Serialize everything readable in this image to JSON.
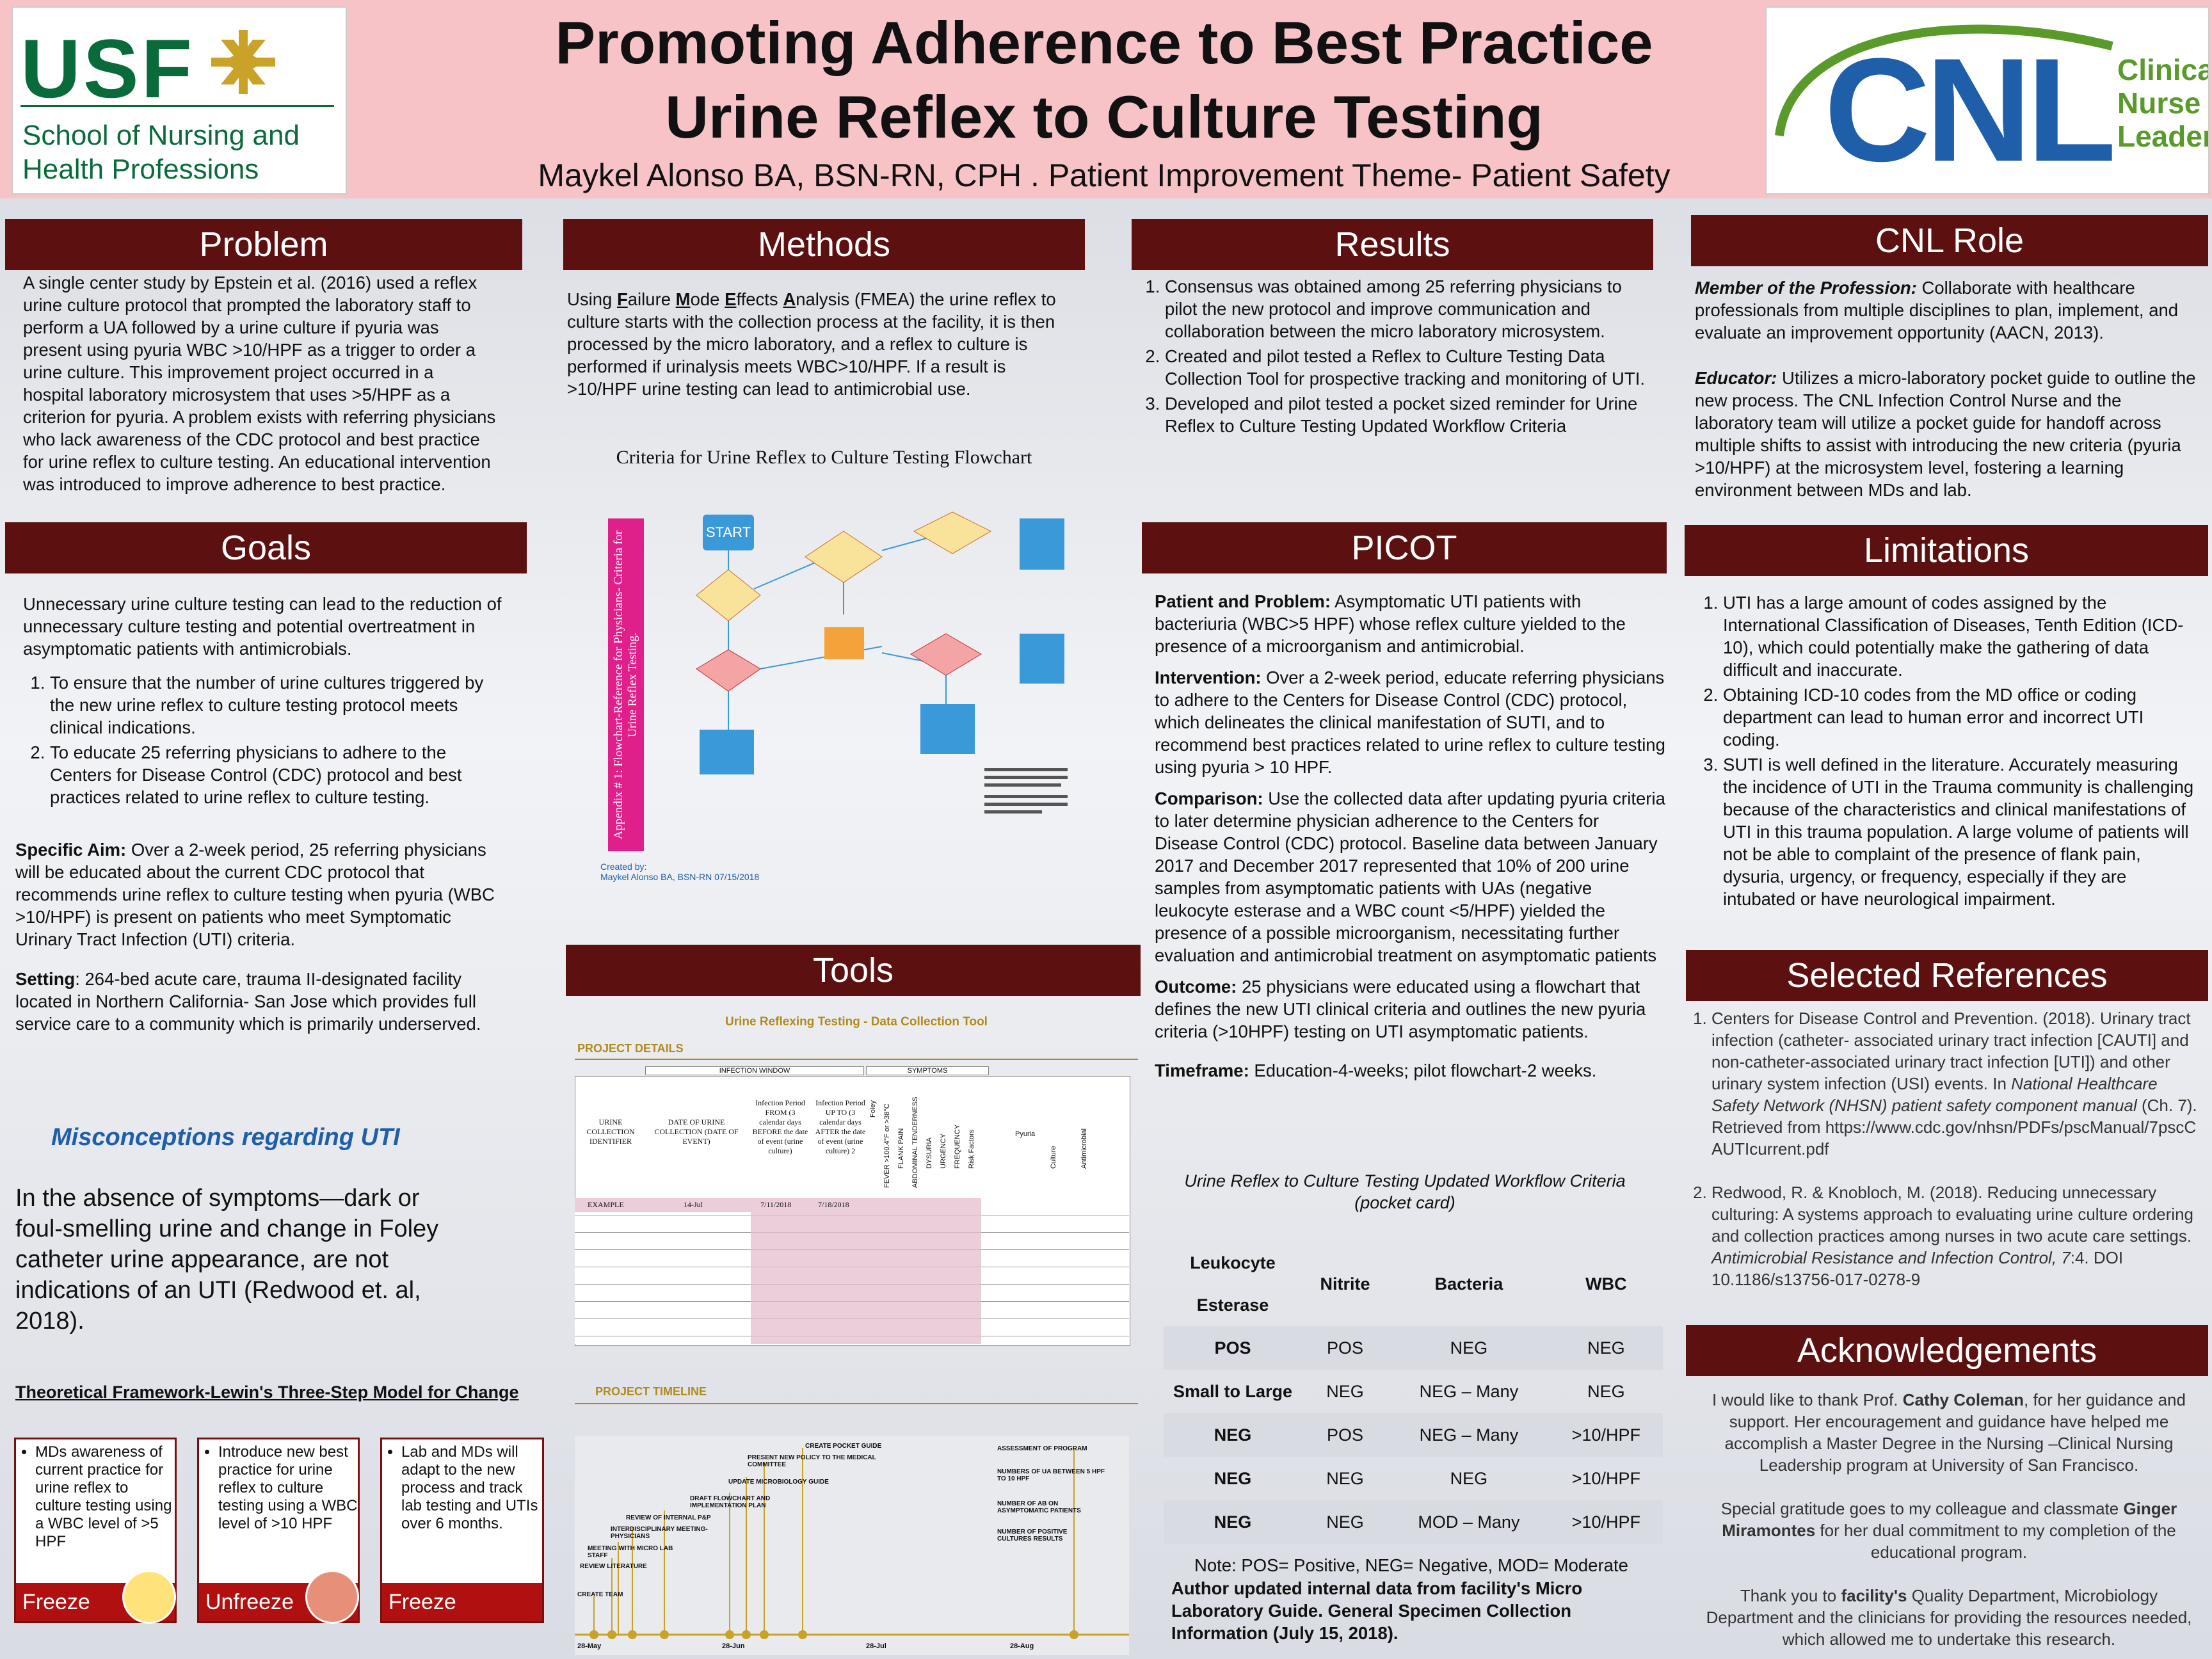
{
  "header": {
    "title1": "Promoting Adherence to Best Practice",
    "title2": "Urine Reflex to Culture Testing",
    "subtitle": "Maykel Alonso BA, BSN-RN, CPH . Patient Improvement Theme- Patient Safety",
    "usf": {
      "logo_text": "USF",
      "school_line1": "School of Nursing and",
      "school_line2": "Health Professions"
    },
    "cnl": {
      "logo_text": "CNL",
      "line1": "Clinical",
      "line2": "Nurse",
      "line3": "Leader"
    }
  },
  "problem": {
    "heading": "Problem",
    "text": "A single center study by Epstein et al. (2016) used a reflex urine culture protocol that prompted the laboratory staff to perform a UA followed by a urine culture if pyuria was present using pyuria WBC >10/HPF as a trigger to order a urine culture. This improvement project occurred in a hospital laboratory microsystem that uses >5/HPF as a criterion for pyuria. A problem exists with referring physicians who lack awareness of the CDC protocol and best practice for urine reflex to culture testing. An educational intervention was introduced to improve adherence to best practice."
  },
  "goals": {
    "heading": "Goals",
    "intro": "Unnecessary urine culture testing can lead to the reduction of unnecessary culture testing and potential overtreatment in asymptomatic patients with antimicrobials.",
    "items": [
      "To ensure that the number of urine cultures triggered by the new urine reflex to culture testing protocol meets clinical indications.",
      "To educate 25 referring physicians to adhere to the Centers for Disease Control (CDC) protocol and best practices related to urine reflex to culture testing."
    ],
    "aim_label": "Specific Aim:",
    "aim_text": "  Over a 2-week period, 25 referring physicians will be educated about the current CDC protocol that recommends urine reflex to culture testing when pyuria (WBC >10/HPF) is present on patients who meet Symptomatic Urinary Tract Infection (UTI) criteria.",
    "setting_label": "Setting",
    "setting_text": ": 264-bed acute care, trauma II-designated facility located in Northern California- San Jose which provides full service care to a community which is primarily underserved.",
    "misconceptions_title": "Misconceptions regarding UTI",
    "misconceptions_text": "In the absence of symptoms—dark or foul-smelling urine and change in Foley catheter urine appearance, are not indications of an UTI (Redwood et. al, 2018).",
    "framework_title": "Theoretical Framework-Lewin's Three-Step Model for Change",
    "steps": [
      {
        "text": "MDs awareness of current practice for urine reflex to culture testing using a WBC level of >5 HPF",
        "label": "Freeze"
      },
      {
        "text": "Introduce new best practice for urine reflex to culture testing using a WBC level of >10 HPF",
        "label": "Unfreeze"
      },
      {
        "text": "Lab and MDs will adapt to the new process and track lab testing and UTIs over 6 months.",
        "label": "Freeze"
      }
    ]
  },
  "methods": {
    "heading": "Methods",
    "text_parts": [
      "Using ",
      "F",
      "ailure ",
      "M",
      "ode ",
      "E",
      "ffects ",
      "A",
      "nalysis (FMEA) the urine reflex to culture starts with the collection process at the facility, it is then processed by the micro laboratory, and a reflex to culture is performed if urinalysis meets WBC>10/HPF.  If a result is >10/HPF urine testing can lead to antimicrobial use."
    ],
    "flowchart_title": "Criteria for Urine Reflex to Culture Testing Flowchart",
    "flowchart_side": "Appendix # 1: Flowchart-Reference for Physicians- Criteria for Urine Reflex Testing.",
    "start": "START",
    "created_by": "Created by:",
    "author_line": "Maykel Alonso BA, BSN-RN  07/15/2018"
  },
  "tools": {
    "heading": "Tools",
    "tool_title": "Urine Reflexing Testing - Data Collection Tool",
    "project_details": "PROJECT DETAILS",
    "infection_window": "INFECTION WINDOW",
    "symptoms": "SYMPTOMS",
    "columns": [
      "URINE COLLECTION IDENTIFIER",
      "DATE OF URINE COLLECTION (DATE OF EVENT)",
      "Infection Period FROM (3 calendar days BEFORE the date of event (urine culture)",
      "Infection Period UP TO (3 calendar days AFTER the date of event (urine culture) 2"
    ],
    "rot_columns": [
      "Foley",
      "FEVER >100.4°F or >38°C",
      "FLANK PAIN",
      "ABDOMINAL TENDERNESS",
      "DYSURIA",
      "URGENCY",
      "FREQUENCY",
      "Risk Factors",
      "Pyuria",
      "Culture",
      "Antimicrobial"
    ],
    "example_row": [
      "EXAMPLE",
      "14-Jul",
      "7/11/2018",
      "7/18/2018"
    ],
    "timeline_title": "PROJECT TIMELINE",
    "timeline_events": [
      "CREATE POCKET GUIDE",
      "PRESENT NEW POLICY TO THE MEDICAL COMMITTEE",
      "UPDATE MICROBIOLOGY GUIDE",
      "DRAFT FLOWCHART AND IMPLEMENTATION PLAN",
      "REVIEW OF INTERNAL P&P",
      "INTERDISCIPLINARY MEETING-PHYSICIANS",
      "MEETING WITH MICRO LAB STAFF",
      "REVIEW LITERATURE",
      "CREATE TEAM",
      "ASSESSMENT OF PROGRAM",
      "NUMBERS OF UA BETWEEN 5 HPF TO 10 HPF",
      "NUMBER OF AB ON ASYMPTOMATIC PATIENTS",
      "NUMBER OF POSITIVE CULTURES RESULTS"
    ],
    "timeline_dates": [
      "28-May",
      "28-Jun",
      "28-Jul",
      "28-Aug"
    ]
  },
  "results": {
    "heading": "Results",
    "items": [
      "Consensus was obtained among 25 referring physicians to pilot the new protocol and improve communication and collaboration between the micro laboratory microsystem.",
      "Created and pilot tested a Reflex to Culture Testing Data Collection Tool for prospective tracking and monitoring of UTI.",
      "Developed and pilot tested a pocket sized reminder for Urine Reflex to Culture Testing Updated Workflow Criteria"
    ]
  },
  "picot": {
    "heading": "PICOT",
    "sections": [
      {
        "label": "Patient and Problem:",
        "text": " Asymptomatic UTI patients with bacteriuria (WBC>5 HPF) whose reflex culture yielded to the presence of a microorganism and antimicrobial."
      },
      {
        "label": "Intervention:",
        "text": " Over a 2-week period, educate referring physicians to adhere to the Centers for Disease Control (CDC) protocol, which delineates the clinical manifestation of SUTI, and to recommend best practices related to urine reflex to culture testing using pyuria > 10 HPF."
      },
      {
        "label": "Comparison:",
        "text": " Use the collected data after updating pyuria criteria to later determine physician adherence to the Centers for Disease Control (CDC) protocol. Baseline data between January 2017 and December 2017 represented that 10% of 200 urine samples from asymptomatic patients with UAs (negative leukocyte esterase and a WBC count <5/HPF) yielded the presence of a possible microorganism, necessitating further evaluation and antimicrobial treatment on asymptomatic patients"
      },
      {
        "label": "Outcome:",
        "text": " 25 physicians were educated using a flowchart that defines the new UTI clinical criteria and outlines the new pyuria criteria (>10HPF) testing on UTI asymptomatic patients."
      },
      {
        "label": "Timeframe:",
        "text": " Education-4-weeks; pilot flowchart-2 weeks."
      }
    ],
    "table_caption": "Urine Reflex to Culture Testing Updated Workflow Criteria (pocket card)",
    "table_head": [
      "Leukocyte Esterase",
      "Nitrite",
      "Bacteria",
      "WBC"
    ],
    "table_rows": [
      [
        "POS",
        "POS",
        "NEG",
        "NEG"
      ],
      [
        "Small to Large",
        "NEG",
        "NEG – Many",
        "NEG"
      ],
      [
        "NEG",
        "POS",
        "NEG – Many",
        ">10/HPF"
      ],
      [
        "NEG",
        "NEG",
        "NEG",
        ">10/HPF"
      ],
      [
        "NEG",
        "NEG",
        "MOD – Many",
        ">10/HPF"
      ]
    ],
    "note": "Note: POS= Positive, NEG= Negative, MOD= Moderate",
    "author_note": "Author updated internal data from facility's Micro Laboratory Guide. General Specimen Collection Information (July 15, 2018)."
  },
  "cnl_role": {
    "heading": "CNL Role",
    "p1_label": "Member of the Profession:",
    "p1_text": " Collaborate with healthcare professionals from multiple disciplines to plan, implement, and evaluate an improvement opportunity (AACN, 2013).",
    "p2_label": "Educator:",
    "p2_text": " Utilizes a micro-laboratory pocket guide to outline the new process. The CNL Infection Control Nurse and the laboratory team will utilize a pocket guide for handoff across multiple shifts to assist with introducing the new criteria (pyuria >10/HPF) at the microsystem level, fostering a learning environment between MDs and lab."
  },
  "limitations": {
    "heading": "Limitations",
    "items": [
      "UTI has a large amount of codes assigned by the International Classification of Diseases, Tenth Edition (ICD-10), which could potentially make the gathering of data difficult and inaccurate.",
      "Obtaining ICD-10 codes from the MD office or coding department can lead to human error and incorrect UTI coding.",
      "SUTI is well defined in the literature. Accurately measuring the incidence of UTI in the Trauma community is challenging because of the characteristics and clinical manifestations of UTI in this trauma population. A large volume of patients will not be able to complaint of the presence of flank pain, dysuria, urgency, or frequency, especially if they are intubated or have neurological impairment."
    ]
  },
  "references": {
    "heading": "Selected References",
    "r1_a": "Centers for Disease Control and Prevention. (2018). Urinary tract infection (catheter-      associated urinary tract infection [CAUTI] and non-catheter-associated urinary tract infection [UTI]) and other urinary system infection (USI) events.  In ",
    "r1_it": "National Healthcare Safety Network (NHSN) patient safety component manual",
    "r1_b": " (Ch. 7).  Retrieved from https://www.cdc.gov/nhsn/PDFs/pscManual/7pscCAUTIcurrent.pdf",
    "r2_a": "Redwood, R. & Knobloch, M. (2018). Reducing unnecessary culturing: A systems approach to evaluating urine culture ordering and collection practices among nurses in two acute care settings. ",
    "r2_it": "Antimicrobial Resistance and Infection Control, 7",
    "r2_b": ":4. DOI 10.1186/s13756-017-0278-9"
  },
  "acknowledgements": {
    "heading": "Acknowledgements",
    "p1_a": "I would like to thank Prof. ",
    "p1_name": "Cathy Coleman",
    "p1_b": ", for her guidance and support. Her encouragement and guidance have helped me accomplish a Master Degree in the Nursing –Clinical Nursing Leadership program at University of San Francisco.",
    "p2_a": "Special gratitude goes to my colleague and classmate ",
    "p2_name": "Ginger Miramontes",
    "p2_b": " for her dual commitment to my completion of the educational program.",
    "p3_a": "Thank you to ",
    "p3_name": "facility's",
    "p3_b": " Quality Department, Microbiology Department and the clinicians for providing the resources needed, which allowed me to undertake this research."
  },
  "colors": {
    "maroon": "#5c1010",
    "header_pink": "#f7c3c6",
    "usf_green": "#0a6b3a",
    "usf_gold": "#c9a227",
    "cnl_blue": "#1f5ea8",
    "cnl_green": "#5a9a2a"
  }
}
